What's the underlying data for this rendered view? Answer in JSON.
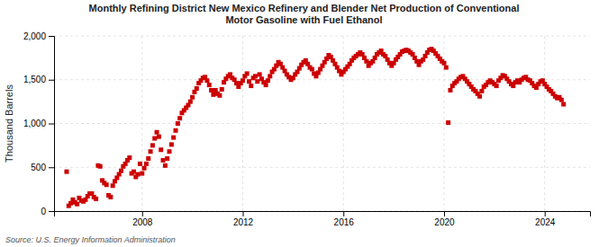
{
  "chart_data": {
    "type": "scatter",
    "title": "Monthly Refining District New Mexico Refinery and Blender Net Production of Conventional\nMotor Gasoline with Fuel Ethanol",
    "ylabel": "Thousand Barrels",
    "annotations": [
      "Source: U.S. Energy Information Administration"
    ],
    "color": "#cc0000",
    "marker": "square",
    "grid": true,
    "xlim": [
      2004.5,
      2025.8
    ],
    "xticks": [
      2008,
      2012,
      2016,
      2020,
      2024
    ],
    "ylim": [
      0,
      2000
    ],
    "yticks": [
      0,
      500,
      {
        "value": 1000,
        "label": "1,000"
      },
      {
        "value": 1500,
        "label": "1,500"
      },
      {
        "value": 2000,
        "label": "2,000"
      }
    ],
    "x": [
      2005.0,
      2005.083,
      2005.167,
      2005.25,
      2005.333,
      2005.417,
      2005.5,
      2005.583,
      2005.667,
      2005.75,
      2005.833,
      2005.917,
      2006.0,
      2006.083,
      2006.167,
      2006.25,
      2006.333,
      2006.417,
      2006.5,
      2006.583,
      2006.667,
      2006.75,
      2006.833,
      2006.917,
      2007.0,
      2007.083,
      2007.167,
      2007.25,
      2007.333,
      2007.417,
      2007.5,
      2007.583,
      2007.667,
      2007.75,
      2007.833,
      2007.917,
      2008.0,
      2008.083,
      2008.167,
      2008.25,
      2008.333,
      2008.417,
      2008.5,
      2008.583,
      2008.667,
      2008.75,
      2008.833,
      2008.917,
      2009.0,
      2009.083,
      2009.167,
      2009.25,
      2009.333,
      2009.417,
      2009.5,
      2009.583,
      2009.667,
      2009.75,
      2009.833,
      2009.917,
      2010.0,
      2010.083,
      2010.167,
      2010.25,
      2010.333,
      2010.417,
      2010.5,
      2010.583,
      2010.667,
      2010.75,
      2010.833,
      2010.917,
      2011.0,
      2011.083,
      2011.167,
      2011.25,
      2011.333,
      2011.417,
      2011.5,
      2011.583,
      2011.667,
      2011.75,
      2011.833,
      2011.917,
      2012.0,
      2012.083,
      2012.167,
      2012.25,
      2012.333,
      2012.417,
      2012.5,
      2012.583,
      2012.667,
      2012.75,
      2012.833,
      2012.917,
      2013.0,
      2013.083,
      2013.167,
      2013.25,
      2013.333,
      2013.417,
      2013.5,
      2013.583,
      2013.667,
      2013.75,
      2013.833,
      2013.917,
      2014.0,
      2014.083,
      2014.167,
      2014.25,
      2014.333,
      2014.417,
      2014.5,
      2014.583,
      2014.667,
      2014.75,
      2014.833,
      2014.917,
      2015.0,
      2015.083,
      2015.167,
      2015.25,
      2015.333,
      2015.417,
      2015.5,
      2015.583,
      2015.667,
      2015.75,
      2015.833,
      2015.917,
      2016.0,
      2016.083,
      2016.167,
      2016.25,
      2016.333,
      2016.417,
      2016.5,
      2016.583,
      2016.667,
      2016.75,
      2016.833,
      2016.917,
      2017.0,
      2017.083,
      2017.167,
      2017.25,
      2017.333,
      2017.417,
      2017.5,
      2017.583,
      2017.667,
      2017.75,
      2017.833,
      2017.917,
      2018.0,
      2018.083,
      2018.167,
      2018.25,
      2018.333,
      2018.417,
      2018.5,
      2018.583,
      2018.667,
      2018.75,
      2018.833,
      2018.917,
      2019.0,
      2019.083,
      2019.167,
      2019.25,
      2019.333,
      2019.417,
      2019.5,
      2019.583,
      2019.667,
      2019.75,
      2019.833,
      2019.917,
      2020.0,
      2020.083,
      2020.167,
      2020.25,
      2020.333,
      2020.417,
      2020.5,
      2020.583,
      2020.667,
      2020.75,
      2020.833,
      2020.917,
      2021.0,
      2021.083,
      2021.167,
      2021.25,
      2021.333,
      2021.417,
      2021.5,
      2021.583,
      2021.667,
      2021.75,
      2021.833,
      2021.917,
      2022.0,
      2022.083,
      2022.167,
      2022.25,
      2022.333,
      2022.417,
      2022.5,
      2022.583,
      2022.667,
      2022.75,
      2022.833,
      2022.917,
      2023.0,
      2023.083,
      2023.167,
      2023.25,
      2023.333,
      2023.417,
      2023.5,
      2023.583,
      2023.667,
      2023.75,
      2023.833,
      2023.917,
      2024.0,
      2024.083,
      2024.167,
      2024.25,
      2024.333,
      2024.417,
      2024.5,
      2024.583,
      2024.667,
      2024.75
    ],
    "values": [
      450,
      60,
      90,
      130,
      100,
      80,
      150,
      120,
      110,
      130,
      170,
      200,
      200,
      160,
      140,
      520,
      510,
      350,
      320,
      300,
      180,
      160,
      290,
      340,
      380,
      420,
      460,
      510,
      540,
      580,
      610,
      430,
      450,
      390,
      420,
      540,
      430,
      490,
      540,
      600,
      680,
      750,
      830,
      900,
      850,
      700,
      580,
      520,
      600,
      680,
      760,
      840,
      920,
      1000,
      1060,
      1120,
      1150,
      1180,
      1210,
      1250,
      1300,
      1360,
      1400,
      1460,
      1490,
      1520,
      1530,
      1490,
      1440,
      1380,
      1330,
      1380,
      1340,
      1320,
      1390,
      1470,
      1510,
      1540,
      1560,
      1520,
      1500,
      1460,
      1420,
      1460,
      1490,
      1540,
      1570,
      1480,
      1430,
      1520,
      1540,
      1480,
      1560,
      1510,
      1470,
      1440,
      1490,
      1540,
      1590,
      1620,
      1660,
      1700,
      1680,
      1640,
      1600,
      1560,
      1530,
      1500,
      1520,
      1560,
      1590,
      1630,
      1670,
      1700,
      1720,
      1680,
      1640,
      1620,
      1570,
      1540,
      1580,
      1620,
      1660,
      1700,
      1740,
      1780,
      1760,
      1720,
      1680,
      1640,
      1600,
      1560,
      1590,
      1620,
      1650,
      1680,
      1720,
      1750,
      1770,
      1790,
      1810,
      1790,
      1750,
      1710,
      1660,
      1690,
      1710,
      1750,
      1790,
      1810,
      1830,
      1790,
      1770,
      1730,
      1690,
      1660,
      1690,
      1730,
      1760,
      1790,
      1820,
      1830,
      1840,
      1830,
      1810,
      1790,
      1750,
      1710,
      1670,
      1710,
      1730,
      1770,
      1810,
      1840,
      1850,
      1830,
      1800,
      1770,
      1740,
      1710,
      1690,
      1640,
      1010,
      1380,
      1430,
      1460,
      1480,
      1510,
      1530,
      1540,
      1510,
      1480,
      1450,
      1420,
      1390,
      1370,
      1340,
      1310,
      1370,
      1420,
      1440,
      1470,
      1490,
      1470,
      1450,
      1430,
      1490,
      1520,
      1550,
      1540,
      1510,
      1480,
      1450,
      1430,
      1470,
      1490,
      1470,
      1500,
      1520,
      1530,
      1500,
      1490,
      1460,
      1430,
      1410,
      1450,
      1480,
      1490,
      1450,
      1420,
      1390,
      1370,
      1340,
      1310,
      1290,
      1300,
      1270,
      1220
    ]
  }
}
